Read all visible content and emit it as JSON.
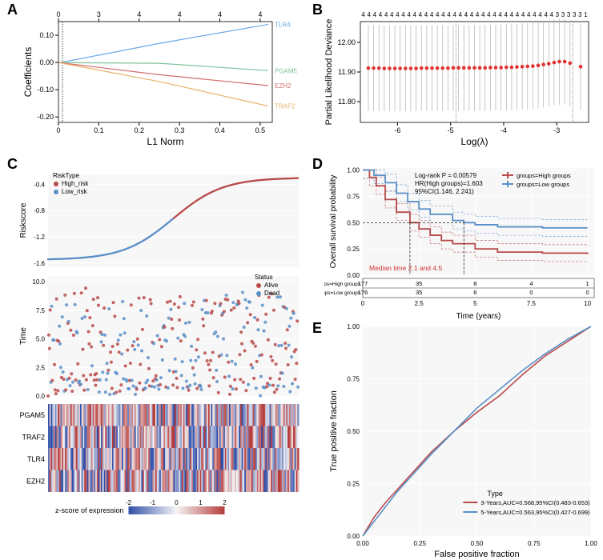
{
  "figsize": [
    753,
    700
  ],
  "panelA": {
    "type": "line",
    "title_letter": "A",
    "xlabel": "L1 Norm",
    "ylabel": "Coefficients",
    "xlim": [
      0,
      0.53
    ],
    "ylim": [
      -0.22,
      0.15
    ],
    "xticks": [
      0,
      0.1,
      0.2,
      0.3,
      0.4,
      0.5
    ],
    "yticks": [
      -0.2,
      -0.1,
      0.0,
      0.1
    ],
    "top_axis_ticks": [
      0,
      3,
      4,
      4,
      4,
      4
    ],
    "top_axis_positions": [
      0,
      0.1,
      0.2,
      0.3,
      0.4,
      0.5
    ],
    "vline_x": 0.01,
    "lines": {
      "TLR4": {
        "color": "#6aa9e9",
        "x": [
          0,
          0.01,
          0.25,
          0.52
        ],
        "y": [
          0,
          0.001,
          0.07,
          0.14
        ],
        "label_y": 0.14
      },
      "PGAM5": {
        "color": "#7ec29b",
        "x": [
          0,
          0.01,
          0.25,
          0.52
        ],
        "y": [
          0,
          -0.0005,
          -0.003,
          -0.03
        ],
        "label_y": -0.03
      },
      "EZH2": {
        "color": "#d46a6a",
        "x": [
          0,
          0.01,
          0.25,
          0.52
        ],
        "y": [
          0,
          -0.002,
          -0.045,
          -0.085
        ],
        "label_y": -0.085
      },
      "TRAF2": {
        "color": "#e8b26a",
        "x": [
          0,
          0.01,
          0.25,
          0.52
        ],
        "y": [
          0,
          -0.003,
          -0.07,
          -0.16
        ],
        "label_y": -0.16
      }
    }
  },
  "panelB": {
    "type": "cv-deviance",
    "title_letter": "B",
    "xlabel": "Log(λ)",
    "ylabel": "Partial Likelihood Deviance",
    "xlim": [
      -6.7,
      -2.4
    ],
    "ylim": [
      11.73,
      12.07
    ],
    "xticks": [
      -6,
      -5,
      -4,
      -3
    ],
    "yticks": [
      11.8,
      11.9,
      12.0
    ],
    "top_labels": [
      4,
      4,
      4,
      4,
      4,
      4,
      4,
      4,
      4,
      4,
      4,
      4,
      4,
      4,
      4,
      4,
      4,
      4,
      4,
      4,
      4,
      4,
      4,
      4,
      4,
      4,
      4,
      4,
      4,
      4,
      4,
      4,
      4,
      4,
      3,
      3,
      3,
      3,
      3,
      1
    ],
    "vlines": [
      -4.9,
      -2.7
    ],
    "point_color": "#e03131",
    "error_color": "#b0b0b0",
    "points_x": [
      -6.55,
      -6.45,
      -6.35,
      -6.25,
      -6.15,
      -6.05,
      -5.95,
      -5.85,
      -5.75,
      -5.65,
      -5.55,
      -5.45,
      -5.35,
      -5.25,
      -5.15,
      -5.05,
      -4.95,
      -4.85,
      -4.75,
      -4.65,
      -4.55,
      -4.45,
      -4.35,
      -4.25,
      -4.15,
      -4.05,
      -3.95,
      -3.85,
      -3.75,
      -3.65,
      -3.55,
      -3.45,
      -3.35,
      -3.25,
      -3.15,
      -3.05,
      -2.95,
      -2.85,
      -2.75,
      -2.55
    ],
    "points_y": [
      11.913,
      11.913,
      11.913,
      11.912,
      11.912,
      11.912,
      11.912,
      11.912,
      11.912,
      11.912,
      11.913,
      11.913,
      11.913,
      11.913,
      11.913,
      11.913,
      11.914,
      11.914,
      11.914,
      11.914,
      11.914,
      11.914,
      11.914,
      11.915,
      11.915,
      11.915,
      11.916,
      11.916,
      11.917,
      11.918,
      11.919,
      11.92,
      11.922,
      11.925,
      11.928,
      11.932,
      11.935,
      11.935,
      11.93,
      11.918
    ],
    "error_half": 0.145
  },
  "panelC": {
    "title_letter": "C",
    "risk": {
      "type": "scatter",
      "ylabel": "Riskscore",
      "legend_title": "RiskType",
      "legend": {
        "High_risk": "#b84a4a",
        "Low_risk": "#5a8fc7"
      },
      "ylim": [
        -1.65,
        -0.25
      ],
      "yticks": [
        -1.6,
        -1.2,
        -0.8,
        -0.4
      ],
      "n": 353,
      "split": 177
    },
    "time": {
      "type": "scatter",
      "ylabel": "Time",
      "legend_title": "Status",
      "legend": {
        "Alive": "#b84a4a",
        "Dead": "#5a8fc7"
      },
      "ylim": [
        0,
        10.5
      ],
      "yticks": [
        0,
        2.5,
        5.0,
        7.5,
        10.0
      ]
    },
    "heatmap": {
      "rows": [
        "PGAM5",
        "TRAF2",
        "TLR4",
        "EZH2"
      ],
      "colorbar_label": "z-score of expression",
      "colormap": {
        "low": "#2f4ea8",
        "mid": "#f5f4f4",
        "high": "#b63b3b"
      },
      "colorbar_ticks": [
        -2,
        -1,
        0,
        1,
        2
      ]
    }
  },
  "panelD": {
    "type": "km",
    "title_letter": "D",
    "xlabel": "Time (years)",
    "ylabel": "Overall survival probability",
    "xlim": [
      0,
      10.3
    ],
    "ylim": [
      0,
      1.02
    ],
    "xticks": [
      0,
      2.5,
      5,
      7.5,
      10
    ],
    "yticks": [
      0,
      0.25,
      0.5,
      0.75,
      1.0
    ],
    "annot": [
      "Log-rank P = 0.00579",
      "HR(High groups)=1.603",
      "95%CI(1.146, 2.241)"
    ],
    "legend": {
      "groups=High groups": "#b84a4a",
      "groups=Low groups": "#5a8fc7"
    },
    "median_text": "Median time 2.1 and 4.5",
    "medians": {
      "high": 2.1,
      "low": 4.5
    },
    "high": {
      "x": [
        0,
        0.3,
        0.6,
        1,
        1.5,
        2.1,
        2.5,
        3,
        3.5,
        4,
        5,
        6,
        8,
        10
      ],
      "y": [
        1,
        0.93,
        0.85,
        0.72,
        0.6,
        0.5,
        0.44,
        0.38,
        0.33,
        0.3,
        0.25,
        0.22,
        0.21,
        0.2
      ]
    },
    "low": {
      "x": [
        0,
        0.5,
        1,
        1.5,
        2,
        2.5,
        3,
        4,
        4.5,
        5,
        6,
        8,
        10
      ],
      "y": [
        1,
        0.95,
        0.88,
        0.78,
        0.7,
        0.63,
        0.58,
        0.52,
        0.5,
        0.48,
        0.46,
        0.45,
        0.45
      ]
    },
    "ci_alpha": 0.5,
    "risk_table": {
      "rows": [
        "groups=High groups",
        "groups=Low groups"
      ],
      "cols": [
        0,
        2.5,
        5,
        7.5,
        10
      ],
      "values": [
        [
          177,
          35,
          8,
          4,
          1
        ],
        [
          176,
          35,
          6,
          0,
          0
        ]
      ]
    }
  },
  "panelE": {
    "type": "roc",
    "title_letter": "E",
    "xlabel": "False positive fraction",
    "ylabel": "True positive fraction",
    "xlim": [
      0,
      1
    ],
    "ylim": [
      0,
      1
    ],
    "ticks": [
      0.0,
      0.25,
      0.5,
      0.75,
      1.0
    ],
    "legend_title": "Type",
    "curves": {
      "3-Years,AUC=0.568,95%CI(0.483-0.653)": {
        "color": "#b84a4a",
        "x": [
          0,
          0.05,
          0.1,
          0.15,
          0.2,
          0.25,
          0.3,
          0.4,
          0.5,
          0.6,
          0.7,
          0.8,
          0.9,
          1.0
        ],
        "y": [
          0,
          0.09,
          0.16,
          0.22,
          0.28,
          0.34,
          0.4,
          0.5,
          0.59,
          0.67,
          0.77,
          0.86,
          0.93,
          1.0
        ]
      },
      "5-Years,AUC=0.563,95%CI(0.427-0.699)": {
        "color": "#5a8fc7",
        "x": [
          0,
          0.05,
          0.1,
          0.15,
          0.2,
          0.25,
          0.3,
          0.4,
          0.5,
          0.6,
          0.7,
          0.8,
          0.9,
          1.0
        ],
        "y": [
          0,
          0.07,
          0.14,
          0.21,
          0.27,
          0.33,
          0.39,
          0.5,
          0.61,
          0.7,
          0.79,
          0.87,
          0.94,
          1.0
        ]
      }
    }
  }
}
